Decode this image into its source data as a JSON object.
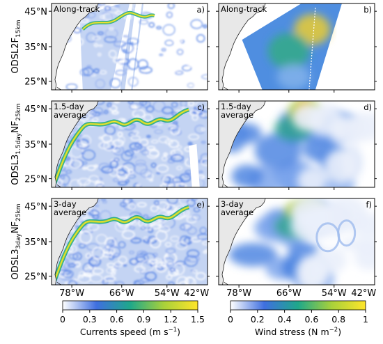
{
  "row_labels": [
    {
      "base": "ODSL2F",
      "sub": "15km",
      "mid": ""
    },
    {
      "base": "ODSL3",
      "sub": "1.5day",
      "mid": "NF",
      "sub2": "25km"
    },
    {
      "base": "ODSL3",
      "sub": "3day",
      "mid": "NF",
      "sub2": "25km"
    }
  ],
  "panels": [
    {
      "id": "a",
      "letter": "a)",
      "label": [
        "Along-track"
      ],
      "variable": "currents"
    },
    {
      "id": "b",
      "letter": "b)",
      "label": [
        "Along-track"
      ],
      "variable": "wind"
    },
    {
      "id": "c",
      "letter": "c)",
      "label": [
        "1.5-day",
        "average"
      ],
      "variable": "currents"
    },
    {
      "id": "d",
      "letter": "d)",
      "label": [
        "1.5-day",
        "average"
      ],
      "variable": "wind"
    },
    {
      "id": "e",
      "letter": "e)",
      "label": [
        "3-day",
        "average"
      ],
      "variable": "currents"
    },
    {
      "id": "f",
      "letter": "f)",
      "label": [
        "3-day",
        "average"
      ],
      "variable": "wind"
    }
  ],
  "lat_ticks": [
    "45°N",
    "35°N",
    "25°N"
  ],
  "lon_ticks": [
    "78°W",
    "66°W",
    "54°W",
    "42°W"
  ],
  "colorbars": {
    "currents": {
      "label": "Currents speed (m s",
      "label_sup": "−1",
      "label_end": ")",
      "range": [
        0,
        1.5
      ],
      "ticks": [
        "0",
        "0.3",
        "0.6",
        "0.9",
        "1.2",
        "1.5"
      ],
      "colors": [
        "#ffffff",
        "#3f6fe0",
        "#1fa88a",
        "#a9d13a",
        "#ffe52a"
      ]
    },
    "wind": {
      "label": "Wind stress (N m",
      "label_sup": "−2",
      "label_end": ")",
      "range": [
        0,
        1
      ],
      "ticks": [
        "0",
        "0.2",
        "0.4",
        "0.6",
        "0.8",
        "1"
      ],
      "colors": [
        "#ffffff",
        "#3f6fe0",
        "#1fa88a",
        "#a9d13a",
        "#ffe52a"
      ]
    }
  },
  "colors": {
    "land": "#e8e8e8",
    "coast": "#222222",
    "swath_gap": "#ffffff"
  }
}
